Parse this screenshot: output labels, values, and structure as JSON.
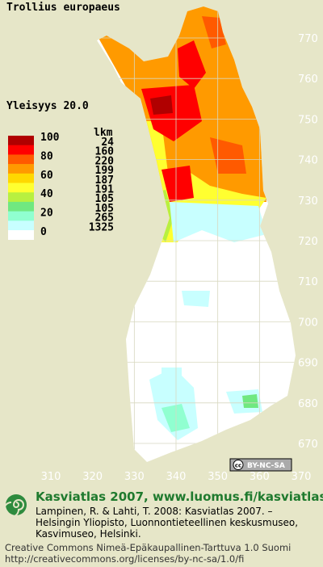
{
  "title": "Trollius europaeus",
  "frequency_label": "Yleisyys  20.0",
  "legend": {
    "count_header": "lkm",
    "levels": [
      100,
      80,
      60,
      40,
      20,
      0
    ],
    "colors": [
      "#b00000",
      "#ff0000",
      "#ff5a00",
      "#ff9a00",
      "#ffd800",
      "#ffff30",
      "#b8f040",
      "#70e880",
      "#90ffd0",
      "#c8ffff",
      "#ffffff"
    ],
    "counts": [
      24,
      160,
      220,
      199,
      187,
      191,
      105,
      105,
      265,
      1325
    ]
  },
  "axes": {
    "yticks": [
      770,
      760,
      750,
      740,
      730,
      720,
      710,
      700,
      690,
      680,
      670
    ],
    "xticks": [
      310,
      320,
      330,
      340,
      350,
      360,
      370
    ]
  },
  "badge": {
    "symbol": "cc",
    "text": "BY-NC-SA"
  },
  "credits": {
    "heading": "Kasviatlas 2007, www.luomus.fi/kasviatlas",
    "citation": [
      "Lampinen, R. & Lahti, T. 2008: Kasviatlas 2007. –",
      "Helsingin Yliopisto, Luonnontieteellinen keskusmuseo,",
      "Kasvimuseo, Helsinki."
    ],
    "license": [
      "Creative Commons Nimeä-Epäkaupallinen-Tarttuva 1.0 Suomi",
      "http://creativecommons.org/licenses/by-nc-sa/1.0/fi"
    ]
  }
}
